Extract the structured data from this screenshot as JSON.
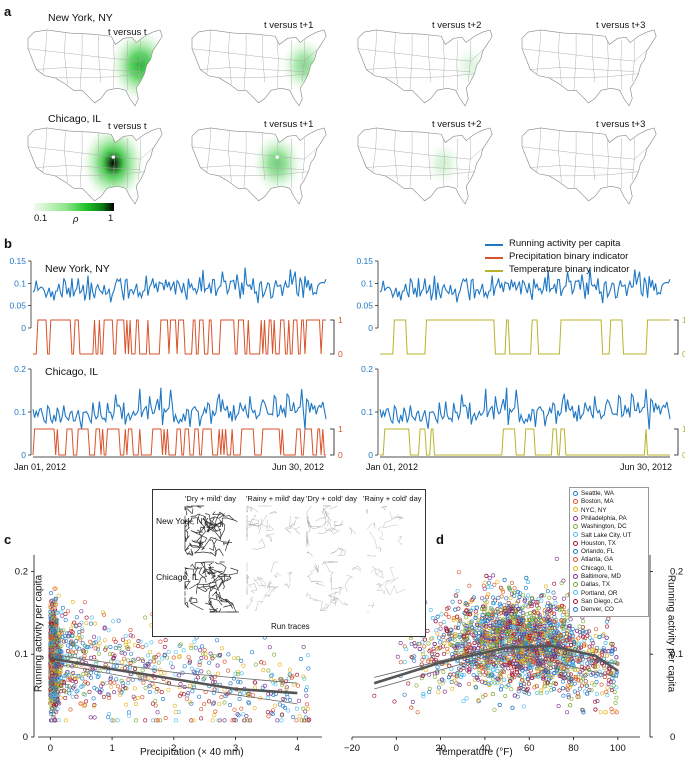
{
  "figure": {
    "panel_letters": [
      "a",
      "b",
      "c",
      "d"
    ]
  },
  "panel_a": {
    "rows": [
      {
        "city": "New York, NY",
        "maps": [
          {
            "label": "t versus t",
            "intensity": 0.9
          },
          {
            "label": "t versus t+1",
            "intensity": 0.5
          },
          {
            "label": "t versus t+2",
            "intensity": 0.15
          },
          {
            "label": "t versus t+3",
            "intensity": 0.0
          }
        ]
      },
      {
        "city": "Chicago, IL",
        "maps": [
          {
            "label": "t versus t",
            "intensity": 1.0
          },
          {
            "label": "t versus t+1",
            "intensity": 0.6
          },
          {
            "label": "t versus t+2",
            "intensity": 0.2
          },
          {
            "label": "t versus t+3",
            "intensity": 0.0
          }
        ]
      }
    ],
    "colorbar": {
      "min_label": "0.1",
      "max_label": "1",
      "symbol": "ρ",
      "colors": [
        "#f1fbef",
        "#8fe68a",
        "#22c42b",
        "#0b7e16",
        "#000000"
      ]
    }
  },
  "panel_b": {
    "legend": [
      {
        "label": "Running activity per capita",
        "color": "#1f77c4"
      },
      {
        "label": "Precipitation binary indicator",
        "color": "#d9522a"
      },
      {
        "label": "Temperature binary indicator",
        "color": "#b8b42a"
      }
    ],
    "cities": [
      "New York, NY",
      "Chicago, IL"
    ],
    "left_column_indicator": "precipitation",
    "right_column_indicator": "temperature",
    "ny_yticks": [
      "0",
      "0.05",
      "0.1",
      "0.15"
    ],
    "chi_yticks": [
      "0",
      "0.1",
      "0.2"
    ],
    "indicator_ticks": [
      "0",
      "1"
    ],
    "x_start": "Jan 01, 2012",
    "x_end": "Jun 30, 2012",
    "days": 182
  },
  "inset": {
    "columns": [
      "'Dry + mild' day",
      "'Rainy + mild' day",
      "'Dry + cold' day",
      "'Rainy + cold' day"
    ],
    "rows": [
      "New York, NY",
      "Chicago, IL"
    ],
    "caption": "Run traces"
  },
  "chart_data": [
    {
      "type": "line",
      "title": "New York, NY — precipitation",
      "series": [
        {
          "name": "Running activity per capita",
          "values_range": [
            0.05,
            0.13
          ],
          "mean": 0.09
        },
        {
          "name": "Precipitation binary indicator",
          "binary": true
        }
      ],
      "x": [
        "Jan 01, 2012",
        "Jun 30, 2012"
      ],
      "ylim": [
        0,
        0.15
      ]
    },
    {
      "type": "line",
      "title": "New York, NY — temperature",
      "series": [
        {
          "name": "Running activity per capita",
          "values_range": [
            0.05,
            0.13
          ],
          "mean": 0.09
        },
        {
          "name": "Temperature binary indicator",
          "binary": true
        }
      ],
      "x": [
        "Jan 01, 2012",
        "Jun 30, 2012"
      ],
      "ylim": [
        0,
        0.15
      ]
    },
    {
      "type": "line",
      "title": "Chicago, IL — precipitation",
      "series": [
        {
          "name": "Running activity per capita",
          "values_range": [
            0.06,
            0.19
          ],
          "mean": 0.11
        },
        {
          "name": "Precipitation binary indicator",
          "binary": true
        }
      ],
      "x": [
        "Jan 01, 2012",
        "Jun 30, 2012"
      ],
      "ylim": [
        0,
        0.2
      ]
    },
    {
      "type": "line",
      "title": "Chicago, IL — temperature",
      "series": [
        {
          "name": "Running activity per capita",
          "values_range": [
            0.06,
            0.19
          ],
          "mean": 0.11
        },
        {
          "name": "Temperature binary indicator",
          "binary": true
        }
      ],
      "x": [
        "Jan 01, 2012",
        "Jun 30, 2012"
      ],
      "ylim": [
        0,
        0.2
      ]
    },
    {
      "type": "scatter",
      "xlabel": "Precipitation (× 40 mm)",
      "ylabel": "Running activity per capita",
      "xlim": [
        -0.2,
        4.5
      ],
      "ylim": [
        0,
        0.25
      ],
      "xticks": [
        "0",
        "1",
        "2",
        "3",
        "4"
      ],
      "yticks": [
        "0",
        "0.1",
        "0.2"
      ],
      "fit_curve": [
        [
          0,
          0.095
        ],
        [
          1,
          0.082
        ],
        [
          2,
          0.07
        ],
        [
          3,
          0.058
        ],
        [
          4,
          0.053
        ]
      ],
      "band_upper": [
        [
          0,
          0.1
        ],
        [
          2,
          0.078
        ],
        [
          4,
          0.065
        ]
      ],
      "band_lower": [
        [
          0,
          0.09
        ],
        [
          2,
          0.062
        ],
        [
          4,
          0.04
        ]
      ]
    },
    {
      "type": "scatter",
      "xlabel": "Temperature (°F)",
      "ylabel": "Running activity per capita",
      "xlim": [
        -20,
        110
      ],
      "ylim": [
        0,
        0.25
      ],
      "xticks": [
        "−20",
        "0",
        "20",
        "40",
        "60",
        "80",
        "100"
      ],
      "yticks": [
        "0",
        "0.1",
        "0.2"
      ],
      "fit_curve": [
        [
          -10,
          0.065
        ],
        [
          20,
          0.09
        ],
        [
          50,
          0.108
        ],
        [
          70,
          0.11
        ],
        [
          90,
          0.098
        ],
        [
          100,
          0.08
        ]
      ],
      "band_upper": [
        [
          -10,
          0.072
        ],
        [
          50,
          0.112
        ],
        [
          100,
          0.088
        ]
      ],
      "band_lower": [
        [
          -10,
          0.058
        ],
        [
          50,
          0.104
        ],
        [
          100,
          0.072
        ]
      ],
      "legend": [
        {
          "label": "Seattle, WA",
          "color": "#1f77c4"
        },
        {
          "label": "Boston, MA",
          "color": "#d9522a"
        },
        {
          "label": "NYC, NY",
          "color": "#e8b21c"
        },
        {
          "label": "Philadelphia, PA",
          "color": "#7b2f8e"
        },
        {
          "label": "Washington, DC",
          "color": "#77ac30"
        },
        {
          "label": "Salt Lake City, UT",
          "color": "#4dbeee"
        },
        {
          "label": "Houston, TX",
          "color": "#a2142f"
        },
        {
          "label": "Orlando, FL",
          "color": "#1f77c4"
        },
        {
          "label": "Atlanta, GA",
          "color": "#d9522a"
        },
        {
          "label": "Chicago, IL",
          "color": "#e8b21c"
        },
        {
          "label": "Baltimore, MD",
          "color": "#7b2f8e"
        },
        {
          "label": "Dallas, TX",
          "color": "#77ac30"
        },
        {
          "label": "Portland, OR",
          "color": "#4dbeee"
        },
        {
          "label": "San Diego, CA",
          "color": "#a2142f"
        },
        {
          "label": "Denver, CO",
          "color": "#1f77c4"
        }
      ]
    }
  ]
}
